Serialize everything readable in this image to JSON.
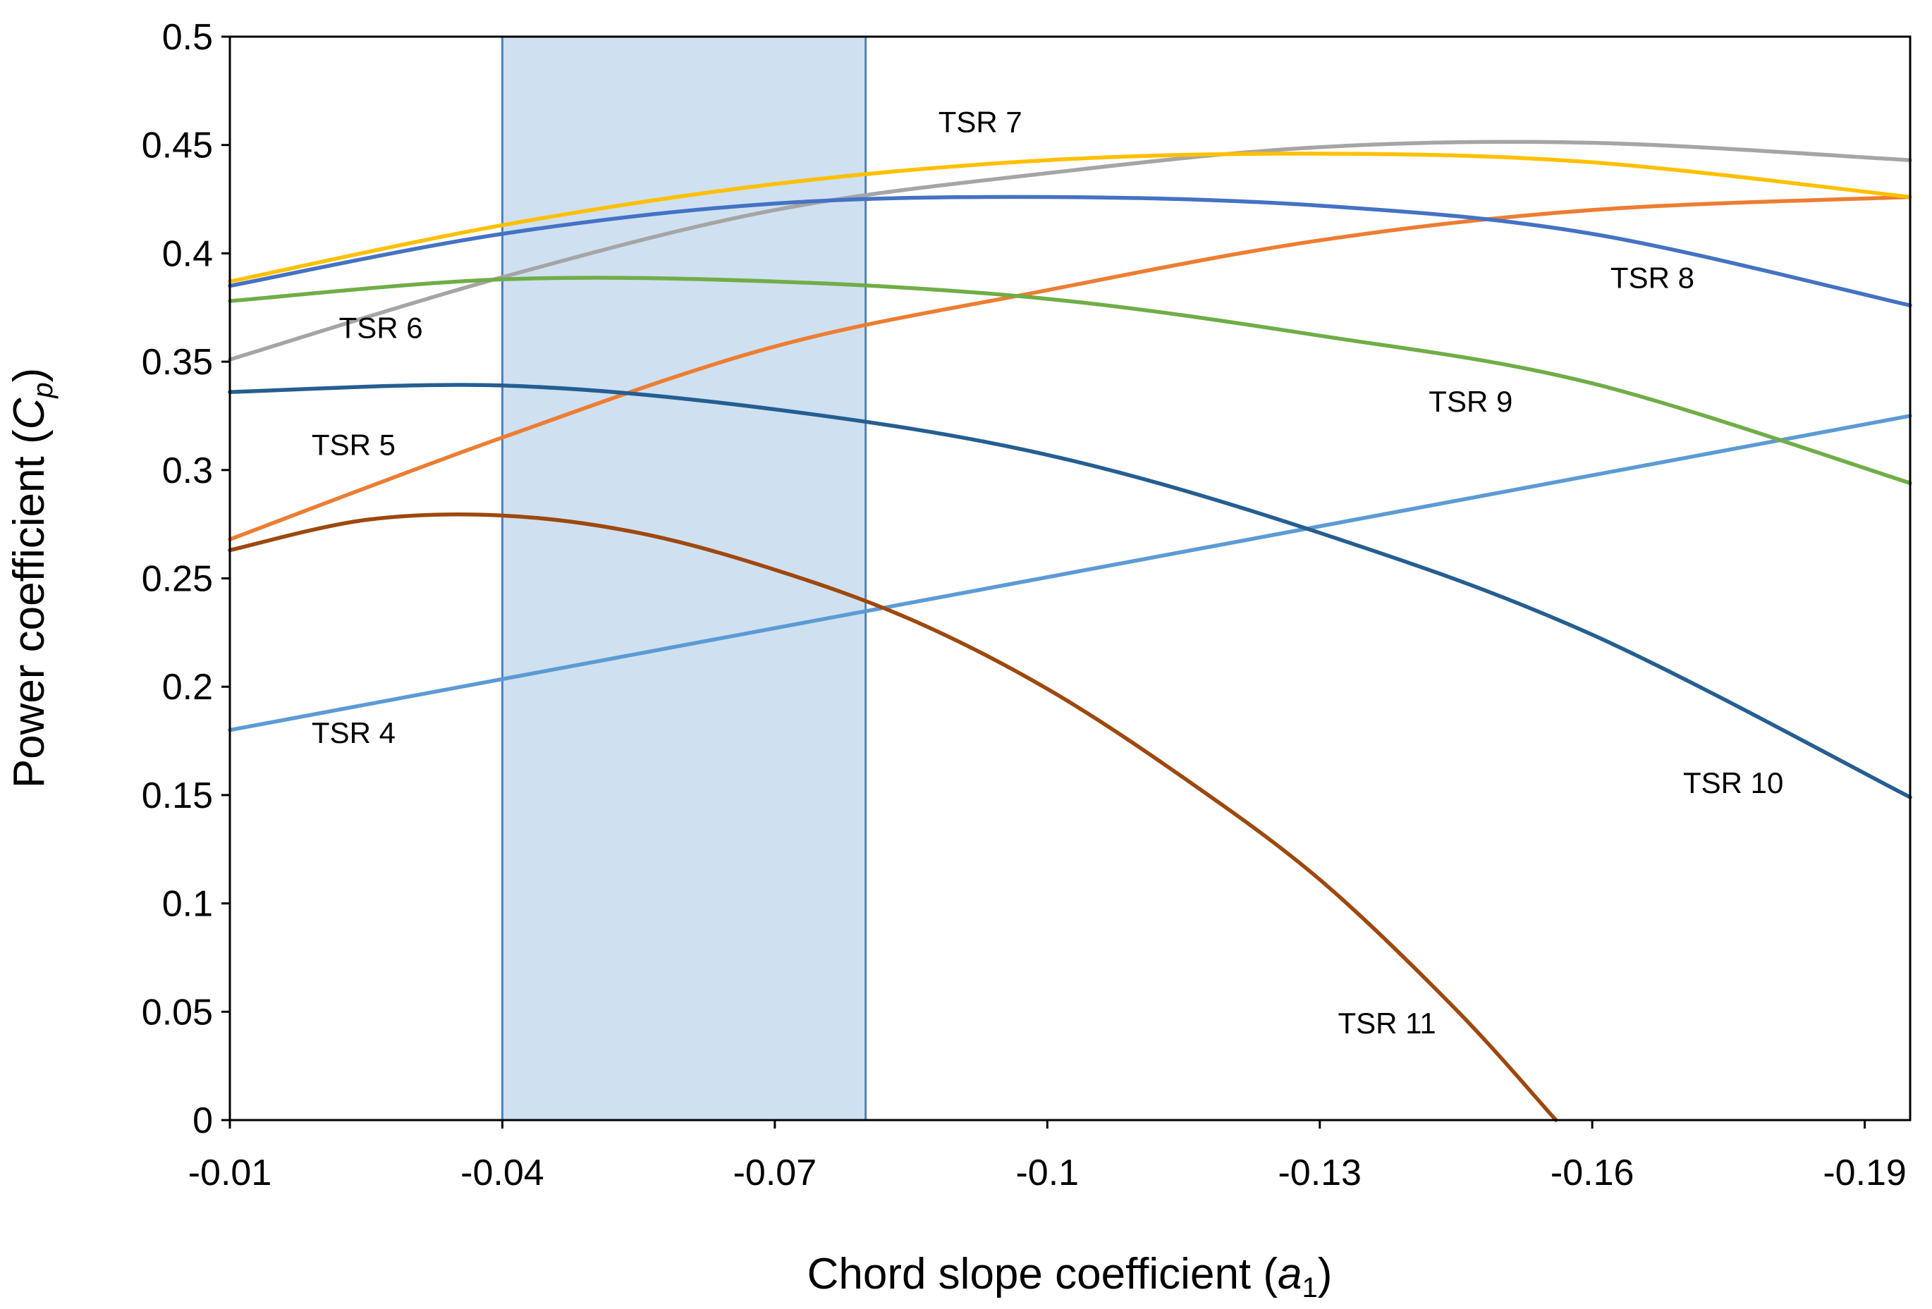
{
  "chart_data": {
    "type": "line",
    "title": "",
    "xlabel": "Chord slope coefficient (a1)",
    "xlabel_parts": {
      "main": "Chord slope coefficient (",
      "var": "a",
      "sub": "1",
      "close": ")"
    },
    "ylabel": "Power coefficient (Cp)",
    "ylabel_parts": {
      "main": "Power coefficient (",
      "var": "C",
      "sub": "p",
      "close": ")"
    },
    "xlim": [
      -0.01,
      -0.195
    ],
    "ylim": [
      0,
      0.5
    ],
    "x_ticks": [
      {
        "value": -0.01,
        "label": "-0.01"
      },
      {
        "value": -0.04,
        "label": "-0.04"
      },
      {
        "value": -0.07,
        "label": "-0.07"
      },
      {
        "value": -0.1,
        "label": "-0.1"
      },
      {
        "value": -0.13,
        "label": "-0.13"
      },
      {
        "value": -0.16,
        "label": "-0.16"
      },
      {
        "value": -0.19,
        "label": "-0.19"
      }
    ],
    "y_ticks": [
      {
        "value": 0,
        "label": "0"
      },
      {
        "value": 0.05,
        "label": "0.05"
      },
      {
        "value": 0.1,
        "label": "0.1"
      },
      {
        "value": 0.15,
        "label": "0.15"
      },
      {
        "value": 0.2,
        "label": "0.2"
      },
      {
        "value": 0.25,
        "label": "0.25"
      },
      {
        "value": 0.3,
        "label": "0.3"
      },
      {
        "value": 0.35,
        "label": "0.35"
      },
      {
        "value": 0.4,
        "label": "0.4"
      },
      {
        "value": 0.45,
        "label": "0.45"
      },
      {
        "value": 0.5,
        "label": "0.5"
      }
    ],
    "grid": false,
    "shaded_region": {
      "x_from": -0.04,
      "x_to": -0.08,
      "fill": "#cfe0f1",
      "stroke": "#4f81bd"
    },
    "series": [
      {
        "name": "TSR 4",
        "color": "#5b9bd5",
        "label_at": {
          "x": -0.019,
          "y": 0.174
        },
        "x": [
          -0.01,
          -0.195
        ],
        "y": [
          0.18,
          0.325
        ]
      },
      {
        "name": "TSR 5",
        "color": "#ed7d31",
        "label_at": {
          "x": -0.019,
          "y": 0.307
        },
        "x": [
          -0.01,
          -0.04,
          -0.07,
          -0.1,
          -0.13,
          -0.16,
          -0.195
        ],
        "y": [
          0.268,
          0.315,
          0.357,
          0.383,
          0.406,
          0.42,
          0.426
        ]
      },
      {
        "name": "TSR 6",
        "color": "#a5a5a5",
        "label_at": {
          "x": -0.022,
          "y": 0.361
        },
        "x": [
          -0.01,
          -0.04,
          -0.07,
          -0.1,
          -0.13,
          -0.16,
          -0.195
        ],
        "y": [
          0.351,
          0.389,
          0.42,
          0.437,
          0.449,
          0.451,
          0.443
        ]
      },
      {
        "name": "TSR 7",
        "color": "#ffc000",
        "label_at": {
          "x": -0.088,
          "y": 0.456
        },
        "x": [
          -0.01,
          -0.04,
          -0.07,
          -0.1,
          -0.13,
          -0.16,
          -0.195
        ],
        "y": [
          0.387,
          0.413,
          0.432,
          0.443,
          0.446,
          0.442,
          0.426
        ]
      },
      {
        "name": "TSR 8",
        "color": "#4472c4",
        "label_at": {
          "x": -0.162,
          "y": 0.384
        },
        "x": [
          -0.01,
          -0.04,
          -0.07,
          -0.1,
          -0.13,
          -0.16,
          -0.195
        ],
        "y": [
          0.385,
          0.409,
          0.423,
          0.426,
          0.422,
          0.409,
          0.376
        ]
      },
      {
        "name": "TSR 9",
        "color": "#70ad47",
        "label_at": {
          "x": -0.142,
          "y": 0.327
        },
        "x": [
          -0.01,
          -0.04,
          -0.07,
          -0.1,
          -0.13,
          -0.16,
          -0.195
        ],
        "y": [
          0.378,
          0.388,
          0.387,
          0.379,
          0.362,
          0.34,
          0.294
        ]
      },
      {
        "name": "TSR 10",
        "color": "#255e91",
        "label_at": {
          "x": -0.17,
          "y": 0.151
        },
        "x": [
          -0.01,
          -0.04,
          -0.07,
          -0.1,
          -0.13,
          -0.16,
          -0.195
        ],
        "y": [
          0.336,
          0.339,
          0.328,
          0.307,
          0.271,
          0.224,
          0.149
        ]
      },
      {
        "name": "TSR 11",
        "color": "#9e480e",
        "label_at": {
          "x": -0.132,
          "y": 0.04
        },
        "x": [
          -0.01,
          -0.025,
          -0.04,
          -0.055,
          -0.07,
          -0.085,
          -0.1,
          -0.115,
          -0.13,
          -0.145,
          -0.156
        ],
        "y": [
          0.263,
          0.277,
          0.279,
          0.271,
          0.254,
          0.231,
          0.199,
          0.158,
          0.111,
          0.051,
          0.0
        ]
      }
    ]
  }
}
